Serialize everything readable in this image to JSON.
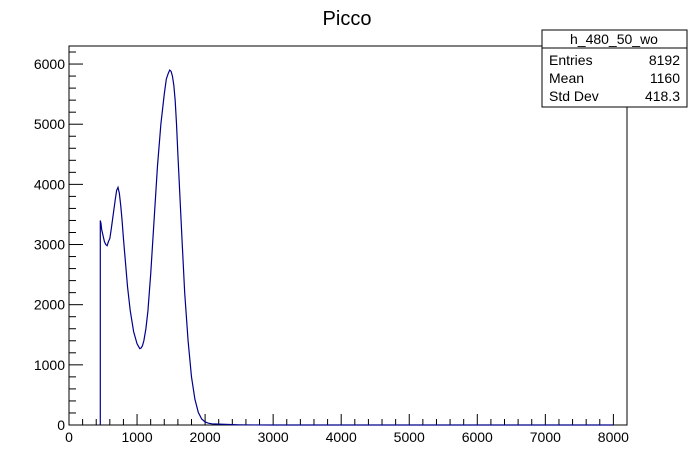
{
  "chart_data": {
    "type": "line",
    "title": "Picco",
    "xlabel": "",
    "ylabel": "",
    "xlim": [
      0,
      8200
    ],
    "ylim": [
      0,
      6300
    ],
    "x_ticks": [
      0,
      1000,
      2000,
      3000,
      4000,
      5000,
      6000,
      7000,
      8000
    ],
    "y_ticks": [
      0,
      1000,
      2000,
      3000,
      4000,
      5000,
      6000
    ],
    "x_tick_labels": [
      "0",
      "1000",
      "2000",
      "3000",
      "4000",
      "5000",
      "6000",
      "7000",
      "8000"
    ],
    "y_tick_labels": [
      "0",
      "1000",
      "2000",
      "3000",
      "4000",
      "5000",
      "6000"
    ],
    "grid": false,
    "legend": "none",
    "line_color": "#00008b",
    "series": [
      {
        "x": [
          460,
          470,
          480,
          500,
          520,
          540,
          560,
          580,
          600,
          620,
          650,
          680,
          700,
          720,
          740,
          760,
          780,
          800,
          830,
          860,
          900,
          950,
          1000,
          1040,
          1060,
          1080,
          1100,
          1130,
          1160,
          1200,
          1250,
          1300,
          1350,
          1400,
          1430,
          1460,
          1480,
          1500,
          1520,
          1540,
          1560,
          1580,
          1600,
          1630,
          1660,
          1700,
          1750,
          1800,
          1850,
          1900,
          1950,
          2000,
          2050,
          2100,
          2200,
          2300,
          2400,
          2500,
          2700,
          3000,
          3500,
          4000,
          5000,
          6000,
          7000,
          8000
        ],
        "y": [
          3400,
          3350,
          3250,
          3150,
          3050,
          3000,
          2980,
          3050,
          3100,
          3250,
          3500,
          3750,
          3900,
          3950,
          3850,
          3650,
          3400,
          3100,
          2700,
          2300,
          1900,
          1550,
          1350,
          1270,
          1280,
          1320,
          1400,
          1600,
          1900,
          2500,
          3400,
          4300,
          5000,
          5500,
          5750,
          5850,
          5900,
          5880,
          5800,
          5650,
          5400,
          5000,
          4500,
          3800,
          3100,
          2200,
          1400,
          800,
          430,
          210,
          100,
          50,
          30,
          20,
          15,
          10,
          6,
          3,
          1,
          0,
          0,
          0,
          0,
          0,
          0,
          0
        ]
      }
    ]
  },
  "stats_box": {
    "name": "h_480_50_wo",
    "rows": [
      {
        "label": "Entries",
        "value": "8192"
      },
      {
        "label": "Mean",
        "value": "1160"
      },
      {
        "label": "Std Dev",
        "value": "418.3"
      }
    ]
  }
}
